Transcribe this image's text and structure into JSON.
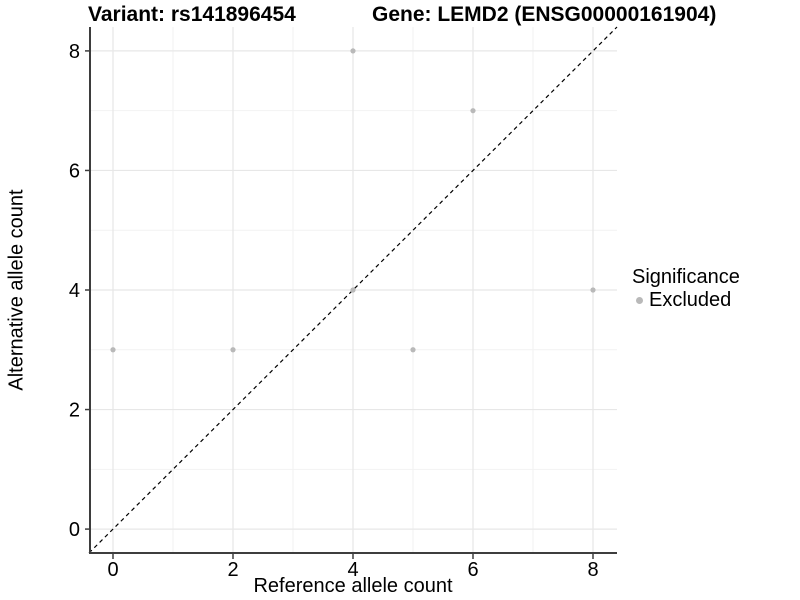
{
  "chart_data": {
    "type": "scatter",
    "title_left": "Variant: rs141896454",
    "title_right": "Gene: LEMD2 (ENSG00000161904)",
    "xlabel": "Reference allele count",
    "ylabel": "Alternative allele count",
    "xlim": [
      -0.4,
      8.4
    ],
    "ylim": [
      -0.4,
      8.4
    ],
    "x_ticks": [
      0,
      2,
      4,
      6,
      8
    ],
    "y_ticks": [
      0,
      2,
      4,
      6,
      8
    ],
    "x_minor_gridlines": [
      1,
      3,
      5,
      7
    ],
    "y_minor_gridlines": [
      1,
      3,
      5,
      7
    ],
    "grid": "on",
    "series": [
      {
        "name": "Excluded",
        "color": "#b9b9b9",
        "points": [
          {
            "x": 0,
            "y": 3
          },
          {
            "x": 2,
            "y": 3
          },
          {
            "x": 4,
            "y": 4
          },
          {
            "x": 4,
            "y": 8
          },
          {
            "x": 5,
            "y": 3
          },
          {
            "x": 6,
            "y": 7
          },
          {
            "x": 8,
            "y": 4
          }
        ]
      }
    ],
    "reference_line": {
      "type": "identity y=x",
      "style": "dashed",
      "color": "#000000"
    },
    "legend": {
      "position": "right",
      "title": "Significance",
      "items": [
        {
          "label": "Excluded",
          "color": "#b9b9b9"
        }
      ]
    },
    "colors": {
      "point_excluded": "#b9b9b9",
      "grid_major": "#e7e7e7",
      "grid_minor": "#f2f2f2",
      "axis_line": "#3d3d3d",
      "text": "#000000",
      "background": "#ffffff"
    }
  }
}
